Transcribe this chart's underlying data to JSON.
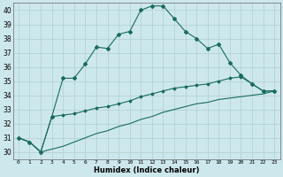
{
  "xlabel": "Humidex (Indice chaleur)",
  "xlim": [
    -0.5,
    23.5
  ],
  "ylim": [
    29.5,
    40.5
  ],
  "yticks": [
    30,
    31,
    32,
    33,
    34,
    35,
    36,
    37,
    38,
    39,
    40
  ],
  "xticks": [
    0,
    1,
    2,
    3,
    4,
    5,
    6,
    7,
    8,
    9,
    10,
    11,
    12,
    13,
    14,
    15,
    16,
    17,
    18,
    19,
    20,
    21,
    22,
    23
  ],
  "bg_color": "#cde8ec",
  "grid_color": "#b0cdd0",
  "line_color": "#1a6b5e",
  "x": [
    0,
    1,
    2,
    3,
    4,
    5,
    6,
    7,
    8,
    9,
    10,
    11,
    12,
    13,
    14,
    15,
    16,
    17,
    18,
    19,
    20,
    21,
    22,
    23
  ],
  "line1": [
    31.0,
    30.7,
    30.0,
    32.5,
    35.2,
    35.2,
    36.2,
    37.4,
    37.3,
    38.3,
    38.5,
    40.0,
    40.3,
    40.3,
    39.4,
    38.5,
    38.0,
    37.3,
    37.6,
    36.3,
    35.4,
    34.8,
    34.3,
    34.3
  ],
  "line2": [
    31.0,
    30.7,
    30.0,
    32.5,
    32.6,
    32.7,
    32.9,
    33.1,
    33.2,
    33.4,
    33.6,
    33.9,
    34.1,
    34.3,
    34.5,
    34.6,
    34.7,
    34.8,
    35.0,
    35.2,
    35.3,
    34.8,
    34.3,
    34.3
  ],
  "line3": [
    31.0,
    30.7,
    30.0,
    30.2,
    30.4,
    30.7,
    31.0,
    31.3,
    31.5,
    31.8,
    32.0,
    32.3,
    32.5,
    32.8,
    33.0,
    33.2,
    33.4,
    33.5,
    33.7,
    33.8,
    33.9,
    34.0,
    34.1,
    34.3
  ]
}
